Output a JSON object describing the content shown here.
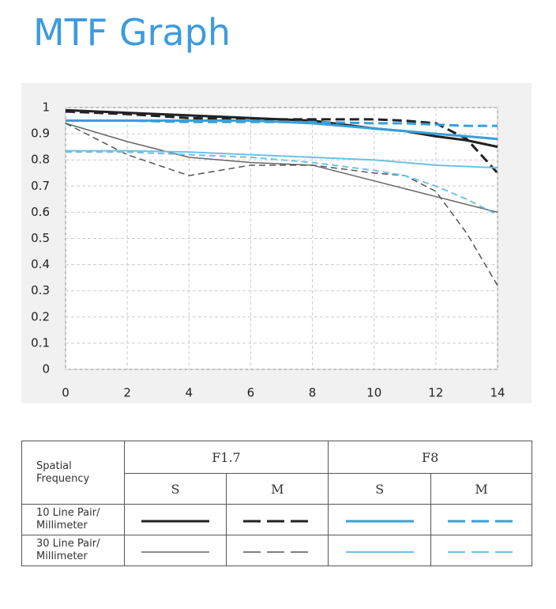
{
  "header": {
    "title": "MTF Graph"
  },
  "chart_data": {
    "type": "line",
    "x": [
      0,
      2,
      4,
      6,
      8,
      10,
      11,
      12,
      13,
      14
    ],
    "xlim": [
      0,
      14
    ],
    "xticks": [
      0,
      2,
      4,
      6,
      8,
      10,
      12,
      14
    ],
    "ylim": [
      0,
      1
    ],
    "yticks": [
      0,
      0.1,
      0.2,
      0.3,
      0.4,
      0.5,
      0.6,
      0.7,
      0.8,
      0.9,
      1
    ],
    "grid": true,
    "series": [
      {
        "color": "#222222",
        "style": "solid",
        "width": 3,
        "values": [
          0.99,
          0.98,
          0.97,
          0.96,
          0.95,
          0.92,
          0.91,
          0.89,
          0.875,
          0.85
        ]
      },
      {
        "color": "#222222",
        "style": "dashed",
        "width": 3,
        "values": [
          0.985,
          0.975,
          0.96,
          0.955,
          0.955,
          0.955,
          0.95,
          0.94,
          0.88,
          0.75
        ]
      },
      {
        "color": "#3a9fd8",
        "style": "solid",
        "width": 3,
        "values": [
          0.95,
          0.95,
          0.95,
          0.95,
          0.94,
          0.92,
          0.91,
          0.9,
          0.89,
          0.88
        ]
      },
      {
        "color": "#3a9fd8",
        "style": "dashed",
        "width": 3,
        "values": [
          0.95,
          0.95,
          0.945,
          0.945,
          0.945,
          0.94,
          0.94,
          0.935,
          0.93,
          0.93
        ]
      },
      {
        "color": "#666666",
        "style": "solid",
        "width": 1.5,
        "values": [
          0.94,
          0.87,
          0.81,
          0.79,
          0.78,
          0.72,
          0.69,
          0.66,
          0.63,
          0.6
        ]
      },
      {
        "color": "#555555",
        "style": "dashed",
        "width": 1.5,
        "values": [
          0.94,
          0.82,
          0.74,
          0.78,
          0.78,
          0.75,
          0.74,
          0.68,
          0.52,
          0.32
        ]
      },
      {
        "color": "#6fc0e6",
        "style": "solid",
        "width": 2,
        "values": [
          0.835,
          0.835,
          0.83,
          0.82,
          0.81,
          0.8,
          0.79,
          0.78,
          0.775,
          0.77
        ]
      },
      {
        "color": "#6fc0e6",
        "style": "dashed",
        "width": 2,
        "values": [
          0.83,
          0.83,
          0.82,
          0.81,
          0.79,
          0.76,
          0.74,
          0.7,
          0.65,
          0.59
        ]
      }
    ]
  },
  "table": {
    "corner": "Spatial Frequency",
    "apertures": [
      "F1.7",
      "F8"
    ],
    "types": [
      "S",
      "M",
      "S",
      "M"
    ],
    "rows": [
      "10 Line Pair/ Millimeter",
      "30 Line Pair/ Millimeter"
    ]
  }
}
